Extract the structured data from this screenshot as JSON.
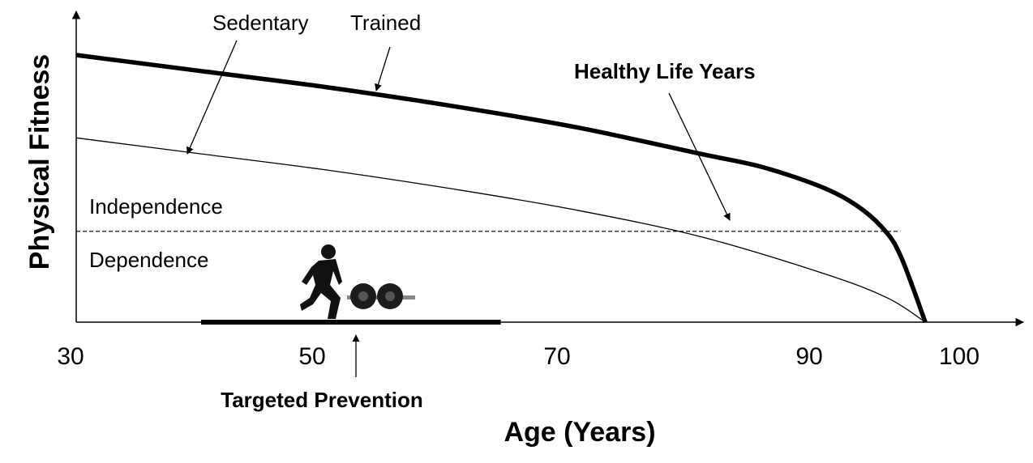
{
  "chart_data": {
    "type": "line",
    "title": "",
    "xlabel": "Age (Years)",
    "ylabel": "Physical Fitness",
    "xlim": [
      30,
      100
    ],
    "x_ticks": [
      "30",
      "50",
      "70",
      "90",
      "100"
    ],
    "x_tick_values": [
      30,
      50,
      70,
      90,
      100
    ],
    "series": [
      {
        "name": "Trained",
        "style": "thick",
        "x": [
          30,
          40,
          50,
          60,
          70,
          80,
          85,
          90,
          93,
          95,
          96,
          97,
          98
        ],
        "y": [
          1.0,
          0.94,
          0.88,
          0.81,
          0.73,
          0.63,
          0.58,
          0.5,
          0.42,
          0.33,
          0.25,
          0.13,
          0.0
        ]
      },
      {
        "name": "Sedentary",
        "style": "thin",
        "x": [
          30,
          40,
          50,
          60,
          70,
          80,
          90,
          95,
          98
        ],
        "y": [
          0.69,
          0.63,
          0.57,
          0.5,
          0.42,
          0.32,
          0.18,
          0.09,
          0.0
        ]
      }
    ],
    "threshold": {
      "y": 0.34,
      "x_end": 96
    },
    "prevention_bar": {
      "x_start": 40,
      "x_end": 64
    },
    "annotations": {
      "sedentary": "Sedentary",
      "trained": "Trained",
      "healthy": "Healthy Life Years",
      "independence": "Independence",
      "dependence": "Dependence",
      "prevention": "Targeted Prevention"
    },
    "grid": false,
    "legend": "none"
  }
}
